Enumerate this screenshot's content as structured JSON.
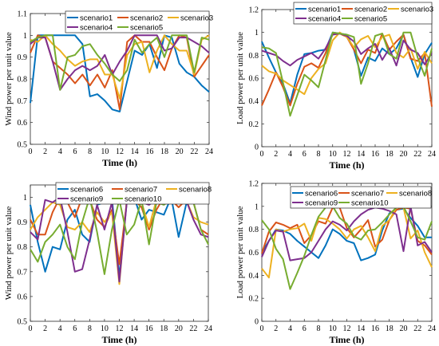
{
  "chart_data": [
    {
      "type": "line",
      "xlabel": "Time (h)",
      "ylabel": "Wind power per unit value",
      "xlim": [
        0,
        24
      ],
      "ylim": [
        0.5,
        1.1
      ],
      "xticks": [
        "0",
        "2",
        "4",
        "6",
        "8",
        "10",
        "12",
        "14",
        "16",
        "18",
        "20",
        "22",
        "24"
      ],
      "yticks": [
        "0.5",
        "0.6",
        "0.7",
        "0.8",
        "0.9",
        "1",
        "1.1"
      ],
      "legend_position": "top",
      "x": [
        0,
        1,
        2,
        3,
        4,
        5,
        6,
        7,
        8,
        9,
        10,
        11,
        12,
        13,
        14,
        15,
        16,
        17,
        18,
        19,
        20,
        21,
        22,
        23,
        24
      ],
      "series": [
        {
          "name": "scenario1",
          "color": "#0072BD",
          "values": [
            0.69,
            1,
            1,
            1,
            1,
            1,
            1,
            0.96,
            0.72,
            0.73,
            0.7,
            0.66,
            0.65,
            0.79,
            0.93,
            0.91,
            0.96,
            0.85,
            1,
            0.99,
            0.87,
            0.83,
            0.81,
            0.77,
            0.74
          ]
        },
        {
          "name": "scenario2",
          "color": "#D95319",
          "values": [
            0.92,
            1,
            0.99,
            0.88,
            0.85,
            0.82,
            0.78,
            0.82,
            0.77,
            0.82,
            0.76,
            0.84,
            0.66,
            0.97,
            1,
            0.97,
            0.97,
            0.9,
            0.84,
            0.94,
            1,
            0.99,
            0.81,
            0.86,
            0.91
          ]
        },
        {
          "name": "scenario3",
          "color": "#EDB120",
          "values": [
            0.98,
            0.97,
            1,
            0.96,
            0.93,
            0.89,
            0.86,
            0.88,
            0.89,
            0.89,
            0.82,
            0.82,
            0.71,
            0.91,
            0.96,
            0.97,
            0.83,
            0.93,
            1,
            0.96,
            0.93,
            0.93,
            0.82,
            0.98,
            1
          ]
        },
        {
          "name": "scenario4",
          "color": "#7E2F8E",
          "values": [
            0.96,
            0.99,
            0.99,
            0.88,
            0.75,
            0.8,
            0.84,
            0.86,
            0.84,
            0.86,
            0.91,
            0.82,
            0.88,
            0.93,
            1,
            1,
            1,
            1,
            0.93,
            0.94,
            0.99,
            0.99,
            0.97,
            0.95,
            0.92
          ]
        },
        {
          "name": "scenario5",
          "color": "#77AC30",
          "values": [
            0.97,
            0.99,
            1,
            1,
            0.75,
            0.9,
            0.91,
            0.95,
            0.96,
            0.91,
            0.87,
            0.82,
            0.79,
            0.84,
            0.98,
            0.92,
            0.96,
            0.99,
            0.9,
            1,
            1,
            1,
            0.83,
            0.99,
            0.98
          ]
        }
      ]
    },
    {
      "type": "line",
      "xlabel": "Time (h)",
      "ylabel": "Load power per unit value",
      "xlim": [
        0,
        24
      ],
      "ylim": [
        0,
        1.2
      ],
      "xticks": [
        "0",
        "2",
        "4",
        "6",
        "8",
        "10",
        "12",
        "14",
        "16",
        "18",
        "20",
        "22",
        "24"
      ],
      "yticks": [
        "0",
        "0.2",
        "0.4",
        "0.6",
        "0.8",
        "1",
        "1.2"
      ],
      "legend_position": "top",
      "x": [
        0,
        1,
        2,
        3,
        4,
        5,
        6,
        7,
        8,
        9,
        10,
        11,
        12,
        13,
        14,
        15,
        16,
        17,
        18,
        19,
        20,
        21,
        22,
        23,
        24
      ],
      "series": [
        {
          "name": "scenario1",
          "color": "#0072BD",
          "values": [
            0.92,
            0.78,
            0.65,
            0.55,
            0.38,
            0.63,
            0.81,
            0.82,
            0.84,
            0.85,
            1,
            0.99,
            0.98,
            0.85,
            0.62,
            0.78,
            0.75,
            0.86,
            0.81,
            0.86,
            0.98,
            0.78,
            0.61,
            0.81,
            0.91
          ]
        },
        {
          "name": "scenario2",
          "color": "#D95319",
          "values": [
            0.36,
            0.5,
            0.65,
            0.52,
            0.36,
            0.55,
            0.7,
            0.73,
            0.69,
            0.82,
            0.99,
            0.99,
            0.96,
            0.85,
            0.73,
            0.85,
            0.82,
            0.99,
            0.85,
            0.92,
            0.98,
            0.77,
            0.75,
            0.82,
            0.35
          ]
        },
        {
          "name": "scenario3",
          "color": "#EDB120",
          "values": [
            0.71,
            0.66,
            0.64,
            0.58,
            0.54,
            0.5,
            0.46,
            0.6,
            0.68,
            0.73,
            0.93,
            1,
            0.96,
            0.87,
            0.94,
            0.97,
            0.87,
            0.96,
            0.98,
            0.82,
            0.78,
            0.86,
            0.68,
            0.83,
            0.73
          ]
        },
        {
          "name": "scenario4",
          "color": "#7E2F8E",
          "values": [
            0.84,
            0.82,
            0.8,
            0.75,
            0.71,
            0.76,
            0.79,
            0.82,
            0.77,
            0.86,
            0.98,
            0.99,
            0.97,
            0.92,
            0.81,
            0.86,
            0.9,
            0.76,
            0.86,
            0.71,
            0.93,
            0.85,
            0.82,
            0.72,
            0.82
          ]
        },
        {
          "name": "scenario5",
          "color": "#77AC30",
          "values": [
            0.87,
            0.86,
            0.82,
            0.56,
            0.27,
            0.45,
            0.63,
            0.58,
            0.52,
            0.76,
            1,
            0.99,
            0.98,
            0.96,
            0.55,
            0.73,
            0.97,
            0.99,
            0.81,
            0.77,
            1,
            1,
            0.78,
            0.62,
            0.86
          ]
        }
      ]
    },
    {
      "type": "line",
      "xlabel": "Time (h)",
      "ylabel": "Wind power per unit value",
      "xlim": [
        0,
        24
      ],
      "ylim": [
        0.5,
        1.05
      ],
      "xticks": [
        "0",
        "2",
        "4",
        "6",
        "8",
        "10",
        "12",
        "14",
        "16",
        "18",
        "20",
        "22",
        "24"
      ],
      "yticks": [
        "0.5",
        "0.6",
        "0.7",
        "0.8",
        "0.9",
        "1"
      ],
      "legend_position": "top",
      "x": [
        0,
        1,
        2,
        3,
        4,
        5,
        6,
        7,
        8,
        9,
        10,
        11,
        12,
        13,
        14,
        15,
        16,
        17,
        18,
        19,
        20,
        21,
        22,
        23,
        24
      ],
      "series": [
        {
          "name": "scenario6",
          "color": "#0072BD",
          "values": [
            0.97,
            0.82,
            0.7,
            0.8,
            0.79,
            0.91,
            0.95,
            0.85,
            0.82,
            0.97,
            0.98,
            1,
            0.68,
            0.98,
            1,
            0.91,
            0.95,
            0.94,
            0.93,
            1,
            0.84,
            0.97,
            0.99,
            0.99,
            1
          ]
        },
        {
          "name": "scenario7",
          "color": "#D95319",
          "values": [
            0.91,
            0.85,
            0.85,
            0.94,
            1,
            0.98,
            0.92,
            1,
            0.99,
            0.91,
            0.88,
            0.95,
            0.73,
            0.98,
            0.99,
            0.96,
            0.87,
            0.95,
            1,
            0.99,
            0.96,
            0.99,
            0.98,
            0.87,
            0.85
          ]
        },
        {
          "name": "scenario8",
          "color": "#EDB120",
          "values": [
            0.87,
            0.92,
            0.95,
            0.98,
            0.97,
            0.88,
            0.87,
            0.9,
            0.86,
            0.94,
            0.9,
            0.94,
            0.65,
            0.99,
            0.99,
            0.98,
            0.88,
            0.99,
            1,
            1,
            0.98,
            0.99,
            0.92,
            0.9,
            0.89
          ]
        },
        {
          "name": "scenario9",
          "color": "#7E2F8E",
          "values": [
            0.86,
            0.83,
            0.99,
            0.98,
            1,
            0.86,
            0.7,
            0.71,
            0.83,
            0.97,
            0.87,
            0.98,
            0.66,
            0.98,
            1,
            0.98,
            0.97,
            0.99,
            0.99,
            0.98,
            1,
            0.99,
            0.91,
            0.85,
            0.84
          ]
        },
        {
          "name": "scenario10",
          "color": "#77AC30",
          "values": [
            0.79,
            0.74,
            0.82,
            0.85,
            0.89,
            0.8,
            0.75,
            0.9,
            1,
            0.86,
            0.69,
            0.87,
            0.99,
            0.85,
            0.89,
            0.99,
            0.81,
            0.98,
            0.97,
            0.99,
            1,
            1,
            0.98,
            0.87,
            0.81
          ]
        }
      ]
    },
    {
      "type": "line",
      "xlabel": "Time (h)",
      "ylabel": "Load power per unit value",
      "xlim": [
        0,
        24
      ],
      "ylim": [
        0,
        1.2
      ],
      "xticks": [
        "0",
        "2",
        "4",
        "6",
        "8",
        "10",
        "12",
        "14",
        "16",
        "18",
        "20",
        "22",
        "24"
      ],
      "yticks": [
        "0",
        "0.2",
        "0.4",
        "0.6",
        "0.8",
        "1",
        "1.2"
      ],
      "legend_position": "top",
      "x": [
        0,
        1,
        2,
        3,
        4,
        5,
        6,
        7,
        8,
        9,
        10,
        11,
        12,
        13,
        14,
        15,
        16,
        17,
        18,
        19,
        20,
        21,
        22,
        23,
        24
      ],
      "series": [
        {
          "name": "scenario6",
          "color": "#0072BD",
          "values": [
            0.6,
            0.7,
            0.8,
            0.79,
            0.76,
            0.7,
            0.65,
            0.6,
            0.55,
            0.66,
            0.8,
            0.76,
            0.7,
            0.68,
            0.53,
            0.55,
            0.58,
            0.79,
            0.94,
            0.97,
            0.98,
            0.9,
            0.83,
            0.73,
            0.73
          ]
        },
        {
          "name": "scenario7",
          "color": "#D95319",
          "values": [
            0.59,
            0.78,
            0.86,
            0.84,
            0.81,
            0.84,
            0.68,
            0.75,
            0.87,
            0.85,
            0.99,
            0.99,
            0.81,
            0.73,
            0.8,
            0.88,
            0.65,
            0.71,
            0.88,
            0.97,
            0.99,
            0.98,
            0.7,
            0.66,
            0.58
          ]
        },
        {
          "name": "scenario8",
          "color": "#EDB120",
          "values": [
            0.46,
            0.38,
            0.8,
            0.78,
            0.8,
            0.81,
            0.85,
            0.7,
            0.9,
            0.89,
            0.85,
            0.8,
            0.72,
            0.8,
            0.83,
            0.73,
            0.61,
            0.83,
            0.88,
            0.99,
            0.99,
            0.72,
            0.79,
            0.6,
            0.47
          ]
        },
        {
          "name": "scenario9",
          "color": "#7E2F8E",
          "values": [
            0.56,
            0.7,
            0.79,
            0.78,
            0.53,
            0.54,
            0.55,
            0.6,
            0.7,
            0.8,
            0.87,
            0.84,
            0.79,
            0.87,
            0.93,
            0.97,
            0.99,
            0.98,
            0.96,
            0.93,
            0.61,
            1,
            0.66,
            0.69,
            0.6
          ]
        },
        {
          "name": "scenario10",
          "color": "#77AC30",
          "values": [
            0.88,
            0.8,
            0.63,
            0.54,
            0.28,
            0.42,
            0.57,
            0.75,
            0.91,
            0.99,
            1,
            0.9,
            0.85,
            0.74,
            0.71,
            0.79,
            0.8,
            0.86,
            0.93,
            0.99,
            1,
            0.87,
            0.73,
            0.71,
            0.87
          ]
        }
      ]
    }
  ]
}
